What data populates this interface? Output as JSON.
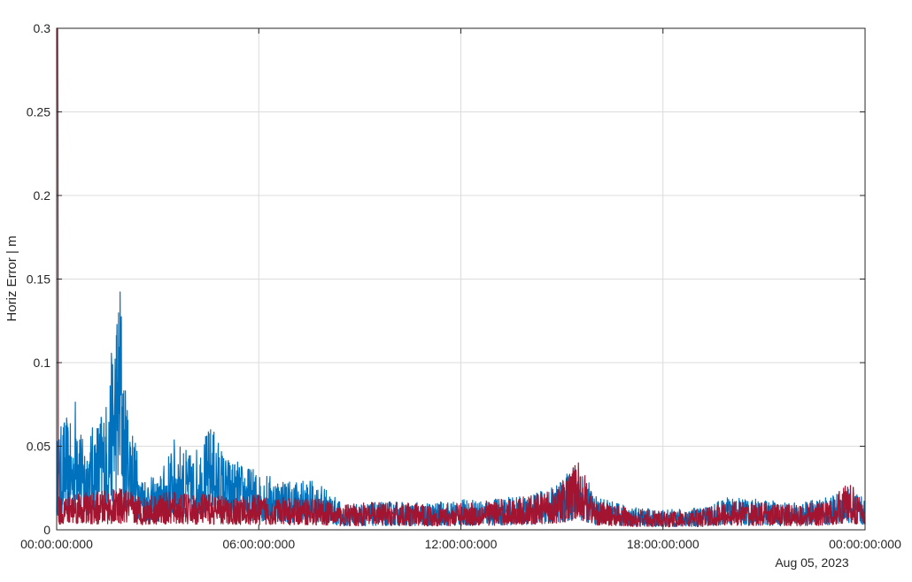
{
  "chart_data": {
    "type": "line",
    "title": "",
    "xlabel": "",
    "ylabel": "Horiz Error | m",
    "date_label": "Aug 05, 2023",
    "xlim": [
      "00:00:00:000",
      "00:00:00:000 (next day)"
    ],
    "xlim_hours": [
      0,
      24
    ],
    "ylim": [
      0,
      0.3
    ],
    "grid": true,
    "legend": "none",
    "x_tick_labels": [
      "00:00:00:000",
      "06:00:00:000",
      "12:00:00:000",
      "18:00:00:000",
      "00:00:00:000"
    ],
    "y_tick_labels": [
      "0",
      "0.05",
      "0.1",
      "0.15",
      "0.2",
      "0.25",
      "0.3"
    ],
    "y_ticks": [
      0,
      0.05,
      0.1,
      0.15,
      0.2,
      0.25,
      0.3
    ],
    "colors": {
      "series_blue": "#0072bd",
      "series_red": "#a2142f",
      "grid": "#dcdcdc",
      "axes": "#262626"
    },
    "series": [
      {
        "color": "#0072bd",
        "x_hours": [
          0,
          0.25,
          0.5,
          0.6,
          0.75,
          1.0,
          1.25,
          1.5,
          1.75,
          1.9,
          2.0,
          2.25,
          2.5,
          3.0,
          3.5,
          3.75,
          4.0,
          4.5,
          4.6,
          5.0,
          5.5,
          6.0,
          6.5,
          7.0,
          7.5,
          8.0,
          8.5,
          9.0,
          10.0,
          11.0,
          12.0,
          13.0,
          14.0,
          15.0,
          15.5,
          16.0,
          17.0,
          18.0,
          19.0,
          20.0,
          21.0,
          22.0,
          23.0,
          23.5,
          24.0
        ],
        "values": [
          0.055,
          0.07,
          0.06,
          0.1,
          0.055,
          0.06,
          0.07,
          0.08,
          0.133,
          0.158,
          0.09,
          0.065,
          0.035,
          0.03,
          0.055,
          0.05,
          0.045,
          0.06,
          0.064,
          0.045,
          0.04,
          0.035,
          0.032,
          0.03,
          0.03,
          0.025,
          0.015,
          0.016,
          0.017,
          0.016,
          0.018,
          0.019,
          0.02,
          0.03,
          0.042,
          0.02,
          0.014,
          0.012,
          0.013,
          0.02,
          0.018,
          0.016,
          0.02,
          0.026,
          0.018
        ]
      },
      {
        "color": "#a2142f",
        "x_hours": [
          0,
          0.03,
          0.06,
          0.5,
          1.0,
          1.5,
          2.0,
          2.5,
          3.0,
          3.5,
          4.0,
          4.5,
          5.0,
          5.5,
          6.0,
          6.5,
          7.0,
          7.5,
          8.0,
          8.5,
          9.0,
          10.0,
          11.0,
          12.0,
          13.0,
          14.0,
          15.0,
          15.5,
          16.0,
          17.0,
          18.0,
          19.0,
          20.0,
          21.0,
          22.0,
          23.0,
          23.5,
          24.0
        ],
        "values": [
          0.3,
          0.3,
          0.02,
          0.025,
          0.022,
          0.024,
          0.025,
          0.02,
          0.022,
          0.023,
          0.021,
          0.022,
          0.02,
          0.02,
          0.021,
          0.02,
          0.019,
          0.02,
          0.018,
          0.015,
          0.016,
          0.017,
          0.015,
          0.016,
          0.018,
          0.02,
          0.028,
          0.043,
          0.018,
          0.013,
          0.011,
          0.012,
          0.018,
          0.016,
          0.015,
          0.018,
          0.03,
          0.015
        ]
      }
    ]
  }
}
